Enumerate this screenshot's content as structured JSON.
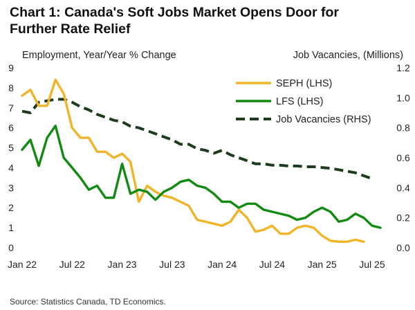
{
  "title": "Chart 1: Canada's Soft Jobs Market Opens Door for Further Rate Relief",
  "source": "Source: Statistics Canada, TD Economics.",
  "chart_data": {
    "type": "line",
    "left_axis_title": "Employment, Year/Year % Change",
    "right_axis_title": "Job Vacancies, (Millions)",
    "x_tick_labels": [
      "Jan 22",
      "Jul 22",
      "Jan 23",
      "Jul 23",
      "Jan 24",
      "Jul 24",
      "Jan 25",
      "Jul 25"
    ],
    "x_tick_months": [
      0,
      6,
      12,
      18,
      24,
      30,
      36,
      42
    ],
    "x_range_months": [
      0,
      43
    ],
    "y_left_ticks": [
      "0",
      "1",
      "2",
      "3",
      "4",
      "5",
      "6",
      "7",
      "8",
      "9"
    ],
    "y_left_range": [
      0,
      9
    ],
    "y_right_ticks": [
      "0.0",
      "0.2",
      "0.4",
      "0.6",
      "0.8",
      "1.0",
      "1.2"
    ],
    "y_right_range": [
      0,
      1.2
    ],
    "legend_position": "top-right",
    "grid": false,
    "series": [
      {
        "name": "SEPH (LHS)",
        "axis": "left",
        "color": "#F0B429",
        "style": "solid",
        "x": [
          0,
          1,
          2,
          3,
          4,
          5,
          6,
          7,
          8,
          9,
          10,
          11,
          12,
          13,
          14,
          15,
          16,
          17,
          18,
          19,
          20,
          21,
          22,
          23,
          24,
          25,
          26,
          27,
          28,
          29,
          30,
          31,
          32,
          33,
          34,
          35,
          36,
          37,
          38,
          39,
          40,
          41
        ],
        "values": [
          7.6,
          7.9,
          7.1,
          7.1,
          8.4,
          7.7,
          6.0,
          5.5,
          5.5,
          4.8,
          4.8,
          4.5,
          4.7,
          4.3,
          2.3,
          3.1,
          2.8,
          2.6,
          2.5,
          2.3,
          2.1,
          1.4,
          1.3,
          1.2,
          1.1,
          1.3,
          1.9,
          1.5,
          0.8,
          0.9,
          1.1,
          0.7,
          0.7,
          1.0,
          1.1,
          1.0,
          0.6,
          0.35,
          0.3,
          0.3,
          0.4,
          0.3
        ]
      },
      {
        "name": "LFS (LHS)",
        "axis": "left",
        "color": "#118A11",
        "style": "solid",
        "x": [
          0,
          1,
          2,
          3,
          4,
          5,
          6,
          7,
          8,
          9,
          10,
          11,
          12,
          13,
          14,
          15,
          16,
          17,
          18,
          19,
          20,
          21,
          22,
          23,
          24,
          25,
          26,
          27,
          28,
          29,
          30,
          31,
          32,
          33,
          34,
          35,
          36,
          37,
          38,
          39,
          40,
          41,
          42,
          43
        ],
        "values": [
          4.9,
          5.4,
          4.1,
          5.5,
          6.1,
          4.5,
          4.0,
          3.5,
          2.9,
          3.1,
          2.5,
          2.5,
          4.2,
          2.7,
          2.9,
          2.8,
          2.4,
          2.8,
          3.0,
          3.3,
          3.4,
          3.1,
          3.0,
          2.7,
          2.3,
          2.3,
          2.0,
          2.2,
          2.2,
          1.9,
          1.8,
          1.7,
          1.6,
          1.4,
          1.5,
          1.8,
          2.0,
          1.8,
          1.3,
          1.4,
          1.7,
          1.5,
          1.1,
          1.0
        ]
      },
      {
        "name": "Job Vacancies (RHS)",
        "axis": "right",
        "color": "#1E3B1E",
        "style": "dashed",
        "x": [
          0,
          1,
          2,
          3,
          4,
          5,
          6,
          7,
          8,
          9,
          10,
          11,
          12,
          13,
          14,
          15,
          16,
          17,
          18,
          19,
          20,
          21,
          22,
          23,
          24,
          25,
          26,
          27,
          28,
          29,
          30,
          31,
          32,
          33,
          34,
          35,
          36,
          37,
          38,
          39,
          40,
          41,
          42
        ],
        "values": [
          0.91,
          0.9,
          0.97,
          0.98,
          0.99,
          0.99,
          0.97,
          0.94,
          0.92,
          0.89,
          0.87,
          0.85,
          0.84,
          0.81,
          0.8,
          0.78,
          0.76,
          0.74,
          0.72,
          0.69,
          0.69,
          0.66,
          0.65,
          0.63,
          0.65,
          0.62,
          0.6,
          0.58,
          0.56,
          0.56,
          0.55,
          0.55,
          0.545,
          0.545,
          0.54,
          0.54,
          0.535,
          0.53,
          0.52,
          0.51,
          0.5,
          0.48,
          0.46
        ]
      }
    ]
  }
}
